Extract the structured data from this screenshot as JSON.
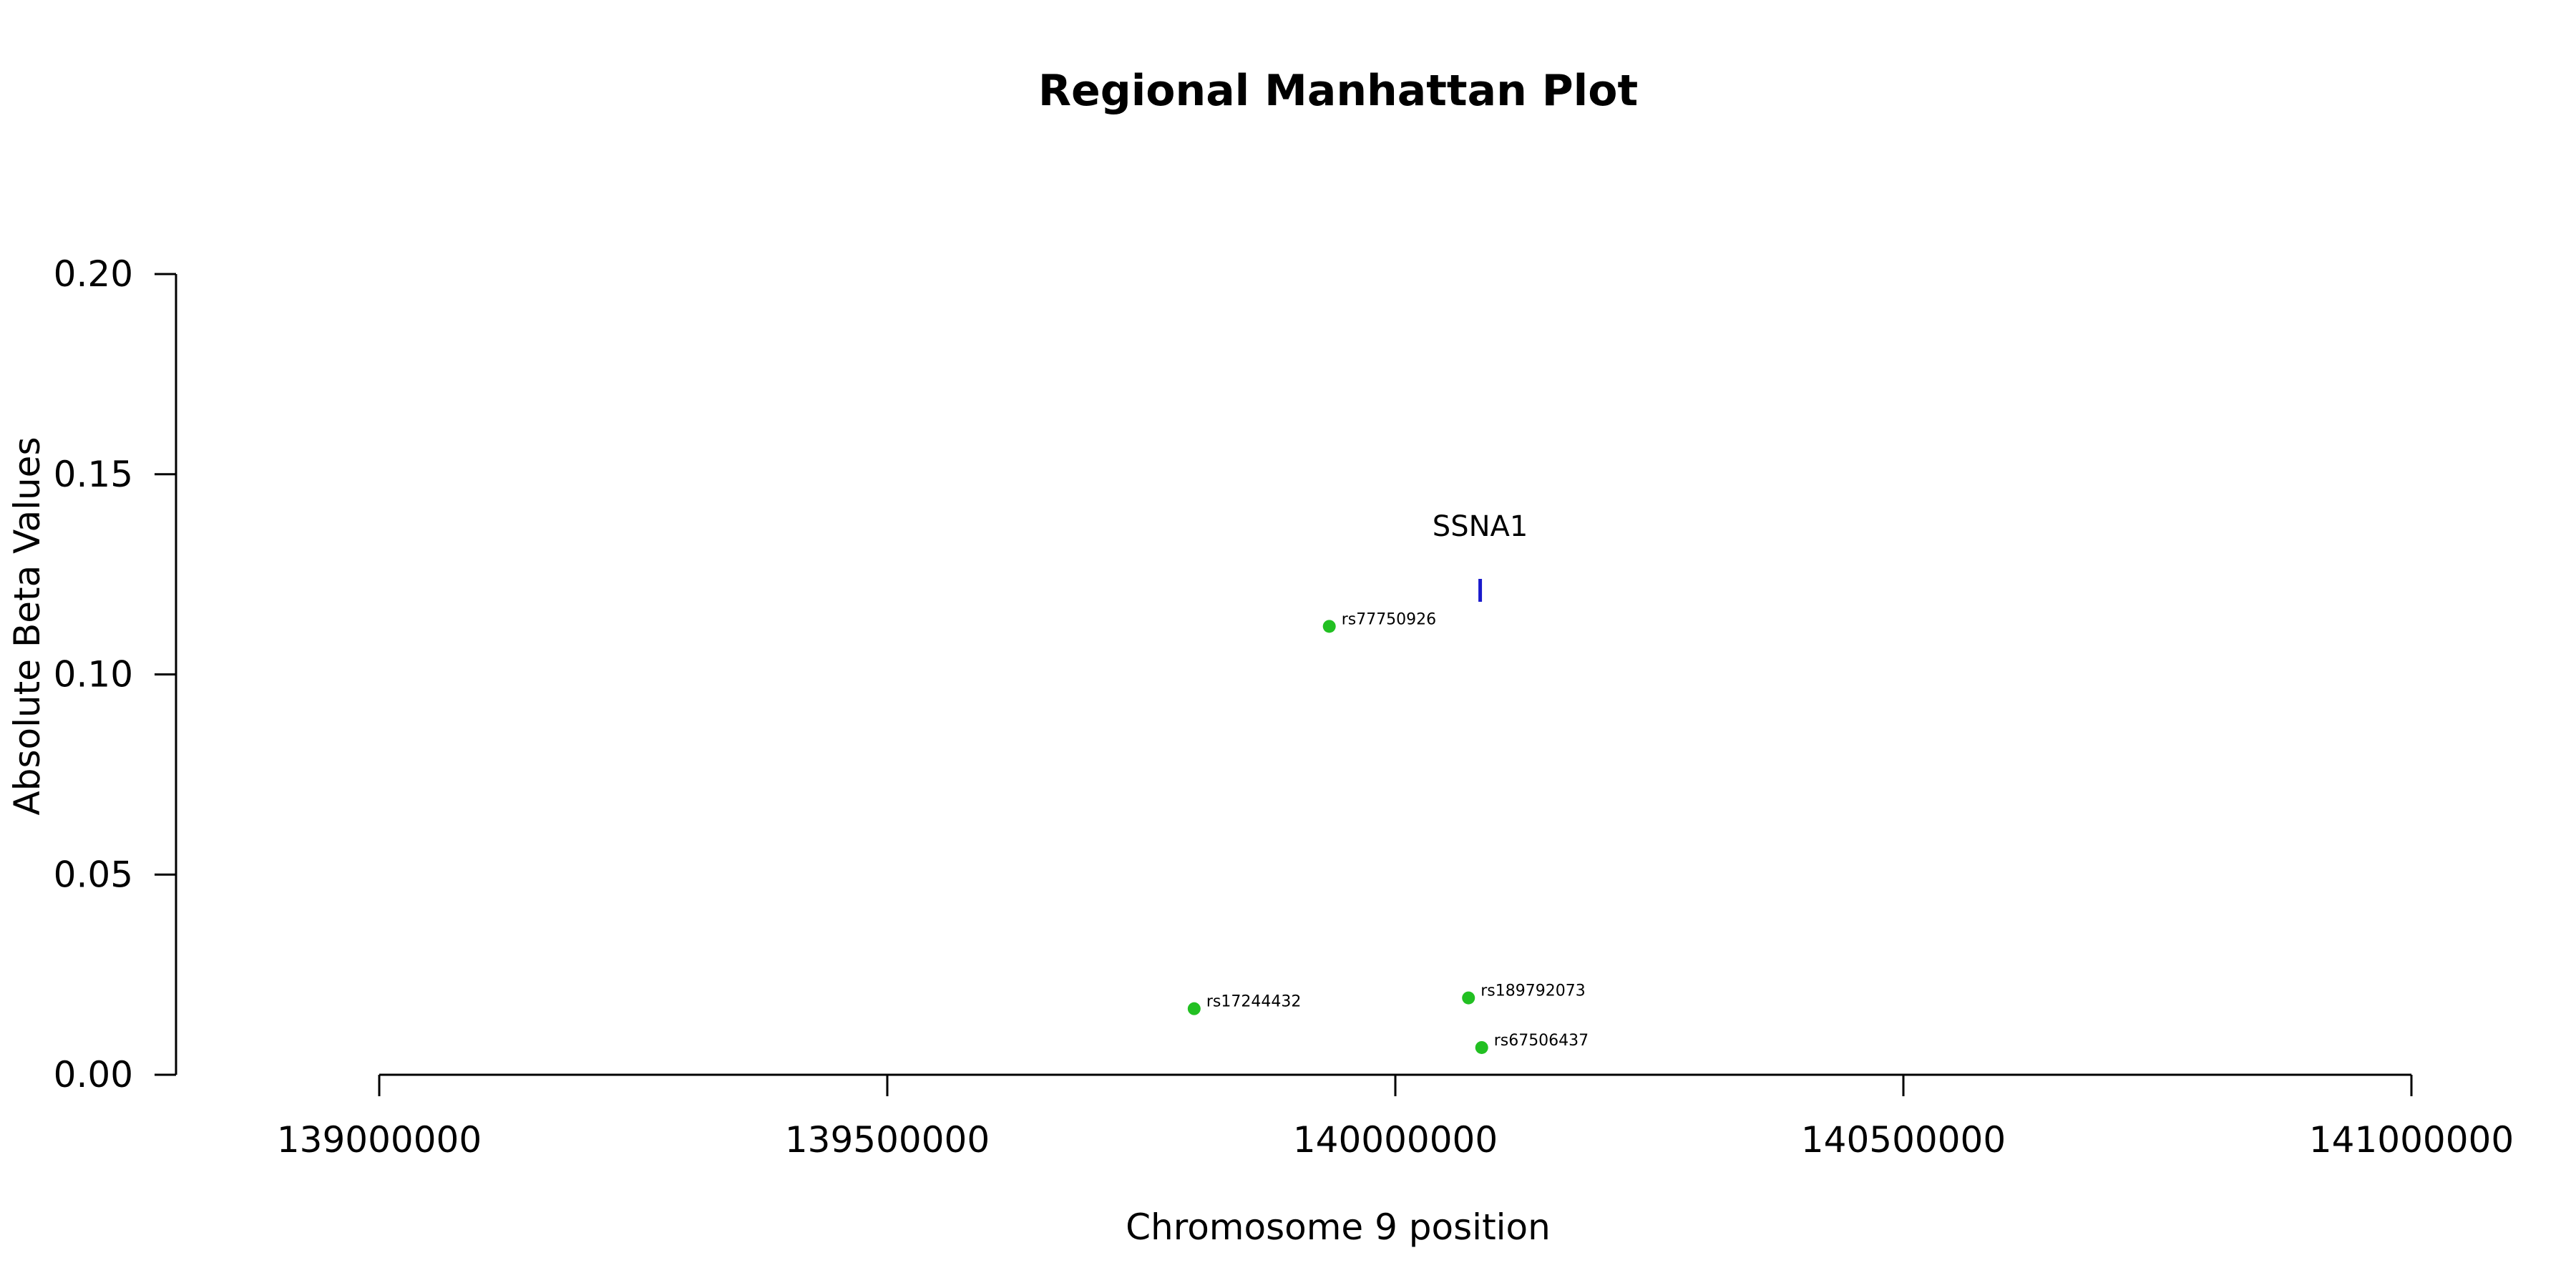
{
  "chart_data": {
    "type": "scatter",
    "title": "Regional Manhattan Plot",
    "xlabel": "Chromosome 9 position",
    "ylabel": "Absolute Beta Values",
    "xlim": [
      139000000,
      141000000
    ],
    "ylim": [
      0,
      0.2
    ],
    "x_ticks": [
      139000000,
      139500000,
      140000000,
      140500000,
      141000000
    ],
    "x_tick_labels": [
      "139000000",
      "139500000",
      "140000000",
      "140500000",
      "141000000"
    ],
    "y_ticks": [
      0,
      0.05,
      0.1,
      0.15,
      0.2
    ],
    "y_tick_labels": [
      "0.00",
      "0.05",
      "0.10",
      "0.15",
      "0.20"
    ],
    "grid": false,
    "point_color": "#22c022",
    "points": [
      {
        "label": "rs77750926",
        "x": 139935000,
        "y": 0.112
      },
      {
        "label": "rs17244432",
        "x": 139802000,
        "y": 0.0165
      },
      {
        "label": "rs189792073",
        "x": 140072000,
        "y": 0.0192
      },
      {
        "label": "rs67506437",
        "x": 140085000,
        "y": 0.0068
      }
    ],
    "genes": [
      {
        "name": "SSNA1",
        "start": 140082000,
        "end": 140085000,
        "y": 0.121,
        "color": "#1a1acc"
      }
    ]
  }
}
